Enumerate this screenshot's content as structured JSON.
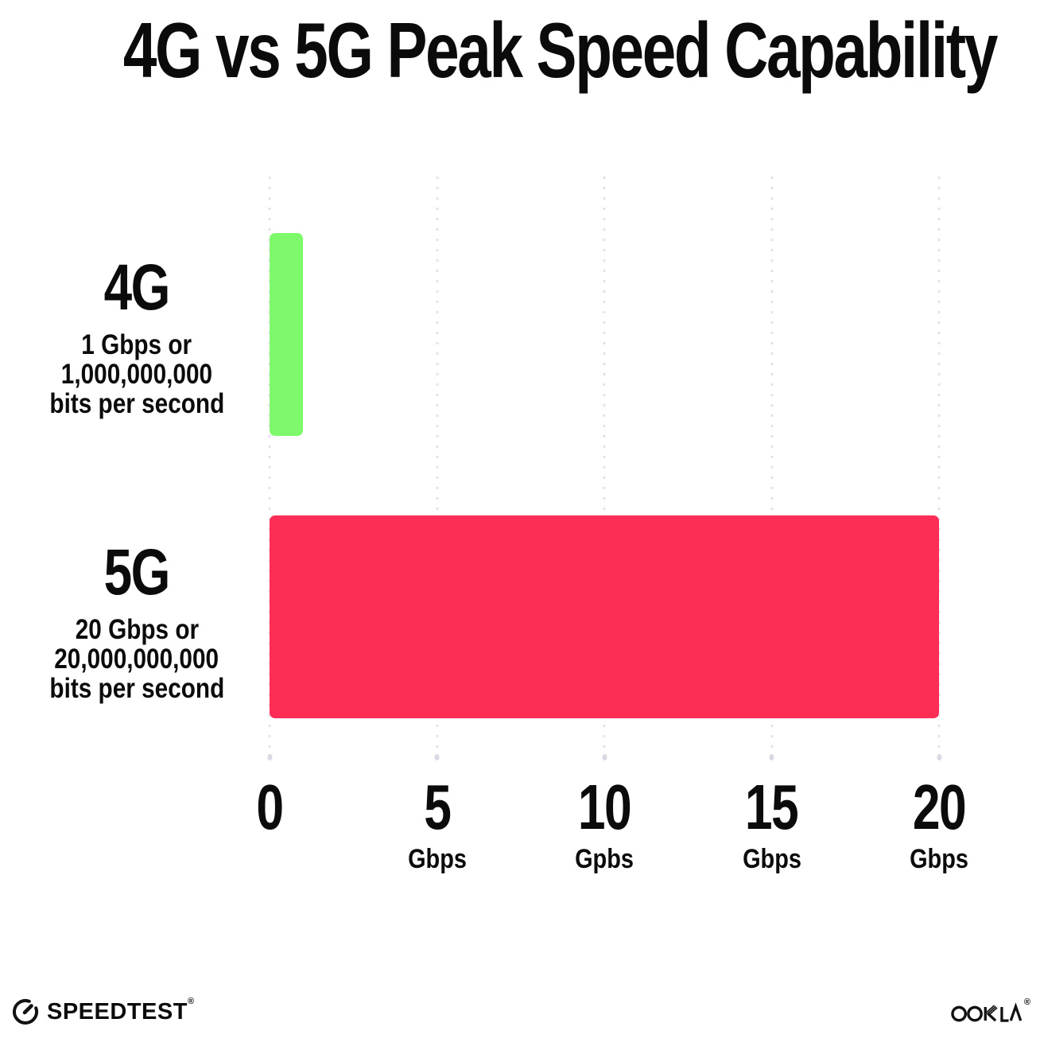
{
  "title": "4G vs 5G Peak Speed Capability",
  "rows": [
    {
      "label": "4G",
      "desc": [
        "1 Gbps or",
        "1,000,000,000",
        "bits per second"
      ]
    },
    {
      "label": "5G",
      "desc": [
        "20 Gbps or",
        "20,000,000,000",
        "bits per second"
      ]
    }
  ],
  "footer": {
    "speedtest_label": "SPEEDTEST",
    "speedtest_reg": "®",
    "ookla_label": "OOKLA",
    "ookla_reg": "®"
  },
  "colors": {
    "bar_4g": "#7DF96B",
    "bar_5g": "#FD2D55",
    "gridline": "#E3E3ED",
    "gridline_dot": "#D9D9E5",
    "text": "#0B0B0B",
    "background": "#FFFFFF"
  },
  "chart_data": {
    "type": "bar",
    "orientation": "horizontal",
    "title": "4G vs 5G Peak Speed Capability",
    "categories": [
      "4G",
      "5G"
    ],
    "values": [
      1,
      20
    ],
    "value_unit": "Gbps",
    "bar_colors": [
      "#7DF96B",
      "#FD2D55"
    ],
    "annotations": [
      "1 Gbps or 1,000,000,000 bits per second",
      "20 Gbps or 20,000,000,000 bits per second"
    ],
    "xlim": [
      0,
      20
    ],
    "xticks": [
      {
        "value": 0,
        "label": "0",
        "unit": ""
      },
      {
        "value": 5,
        "label": "5",
        "unit": "Gbps"
      },
      {
        "value": 10,
        "label": "10",
        "unit": "Gpbs"
      },
      {
        "value": 15,
        "label": "15",
        "unit": "Gbps"
      },
      {
        "value": 20,
        "label": "20",
        "unit": "Gbps"
      }
    ],
    "grid": "vertical-dotted",
    "legend": false
  }
}
